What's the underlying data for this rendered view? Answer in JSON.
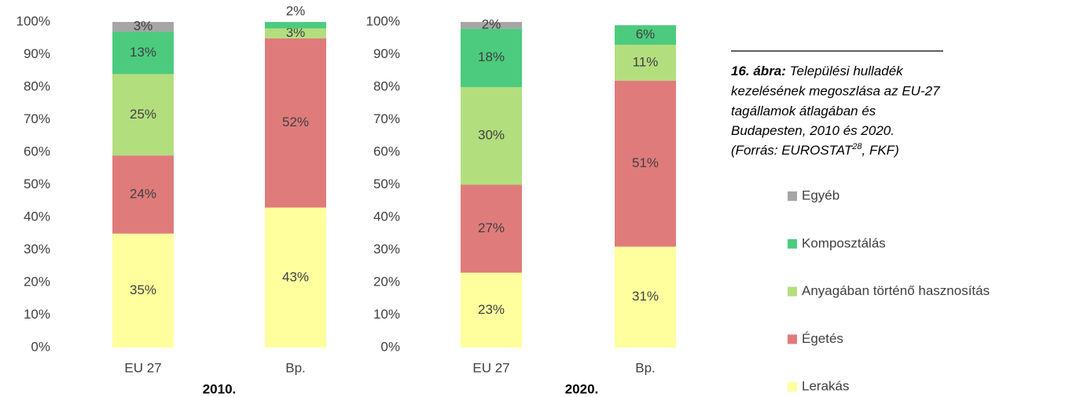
{
  "chart_data": [
    {
      "type": "stacked-bar",
      "title": "2010.",
      "categories": [
        "EU 27",
        "Bp."
      ],
      "ylim": [
        0,
        100
      ],
      "yticks": [
        {
          "value": 0,
          "label": "0%"
        },
        {
          "value": 10,
          "label": "10%"
        },
        {
          "value": 20,
          "label": "20%"
        },
        {
          "value": 30,
          "label": "30%"
        },
        {
          "value": 40,
          "label": "40%"
        },
        {
          "value": 50,
          "label": "50%"
        },
        {
          "value": 60,
          "label": "60%"
        },
        {
          "value": 70,
          "label": "70%"
        },
        {
          "value": 80,
          "label": "80%"
        },
        {
          "value": 90,
          "label": "90%"
        },
        {
          "value": 100,
          "label": "100%"
        }
      ],
      "series": [
        {
          "name": "Lerakás",
          "color": "#ffff9e",
          "values": [
            35,
            43
          ],
          "value_labels": [
            "35%",
            "43%"
          ]
        },
        {
          "name": "Égetés",
          "color": "#e07b7b",
          "values": [
            24,
            52
          ],
          "value_labels": [
            "24%",
            "52%"
          ]
        },
        {
          "name": "Anyagában történő hasznosítás",
          "color": "#b3de7e",
          "values": [
            25,
            3
          ],
          "value_labels": [
            "25%",
            "3%"
          ]
        },
        {
          "name": "Komposztálás",
          "color": "#4ccb7e",
          "values": [
            13,
            2
          ],
          "value_labels": [
            "13%",
            "2%"
          ]
        },
        {
          "name": "Egyéb",
          "color": "#a6a6a6",
          "values": [
            3,
            0
          ],
          "value_labels": [
            "3%",
            null
          ]
        }
      ]
    },
    {
      "type": "stacked-bar",
      "title": "2020.",
      "categories": [
        "EU 27",
        "Bp."
      ],
      "ylim": [
        0,
        100
      ],
      "yticks": [
        {
          "value": 0,
          "label": "0%"
        },
        {
          "value": 10,
          "label": "10%"
        },
        {
          "value": 20,
          "label": "20%"
        },
        {
          "value": 30,
          "label": "30%"
        },
        {
          "value": 40,
          "label": "40%"
        },
        {
          "value": 50,
          "label": "50%"
        },
        {
          "value": 60,
          "label": "60%"
        },
        {
          "value": 70,
          "label": "70%"
        },
        {
          "value": 80,
          "label": "80%"
        },
        {
          "value": 90,
          "label": "90%"
        },
        {
          "value": 100,
          "label": "100%"
        }
      ],
      "series": [
        {
          "name": "Lerakás",
          "color": "#ffff9e",
          "values": [
            23,
            31
          ],
          "value_labels": [
            "23%",
            "31%"
          ]
        },
        {
          "name": "Égetés",
          "color": "#e07b7b",
          "values": [
            27,
            51
          ],
          "value_labels": [
            "27%",
            "51%"
          ]
        },
        {
          "name": "Anyagában történő hasznosítás",
          "color": "#b3de7e",
          "values": [
            30,
            11
          ],
          "value_labels": [
            "30%",
            "11%"
          ]
        },
        {
          "name": "Komposztálás",
          "color": "#4ccb7e",
          "values": [
            18,
            6
          ],
          "value_labels": [
            "18%",
            "6%"
          ]
        },
        {
          "name": "Egyéb",
          "color": "#a6a6a6",
          "values": [
            2,
            0
          ],
          "value_labels": [
            "2%",
            null
          ]
        }
      ]
    }
  ],
  "caption": {
    "label": "16. ábra:",
    "lines": [
      "Települési hulladék",
      "kezelésének megoszlása az EU-27",
      "tagállamok átlagában és",
      "Budapesten, 2010 és 2020."
    ],
    "source": [
      "(Forrás: EUROSTAT",
      "28",
      ", FKF)"
    ]
  }
}
